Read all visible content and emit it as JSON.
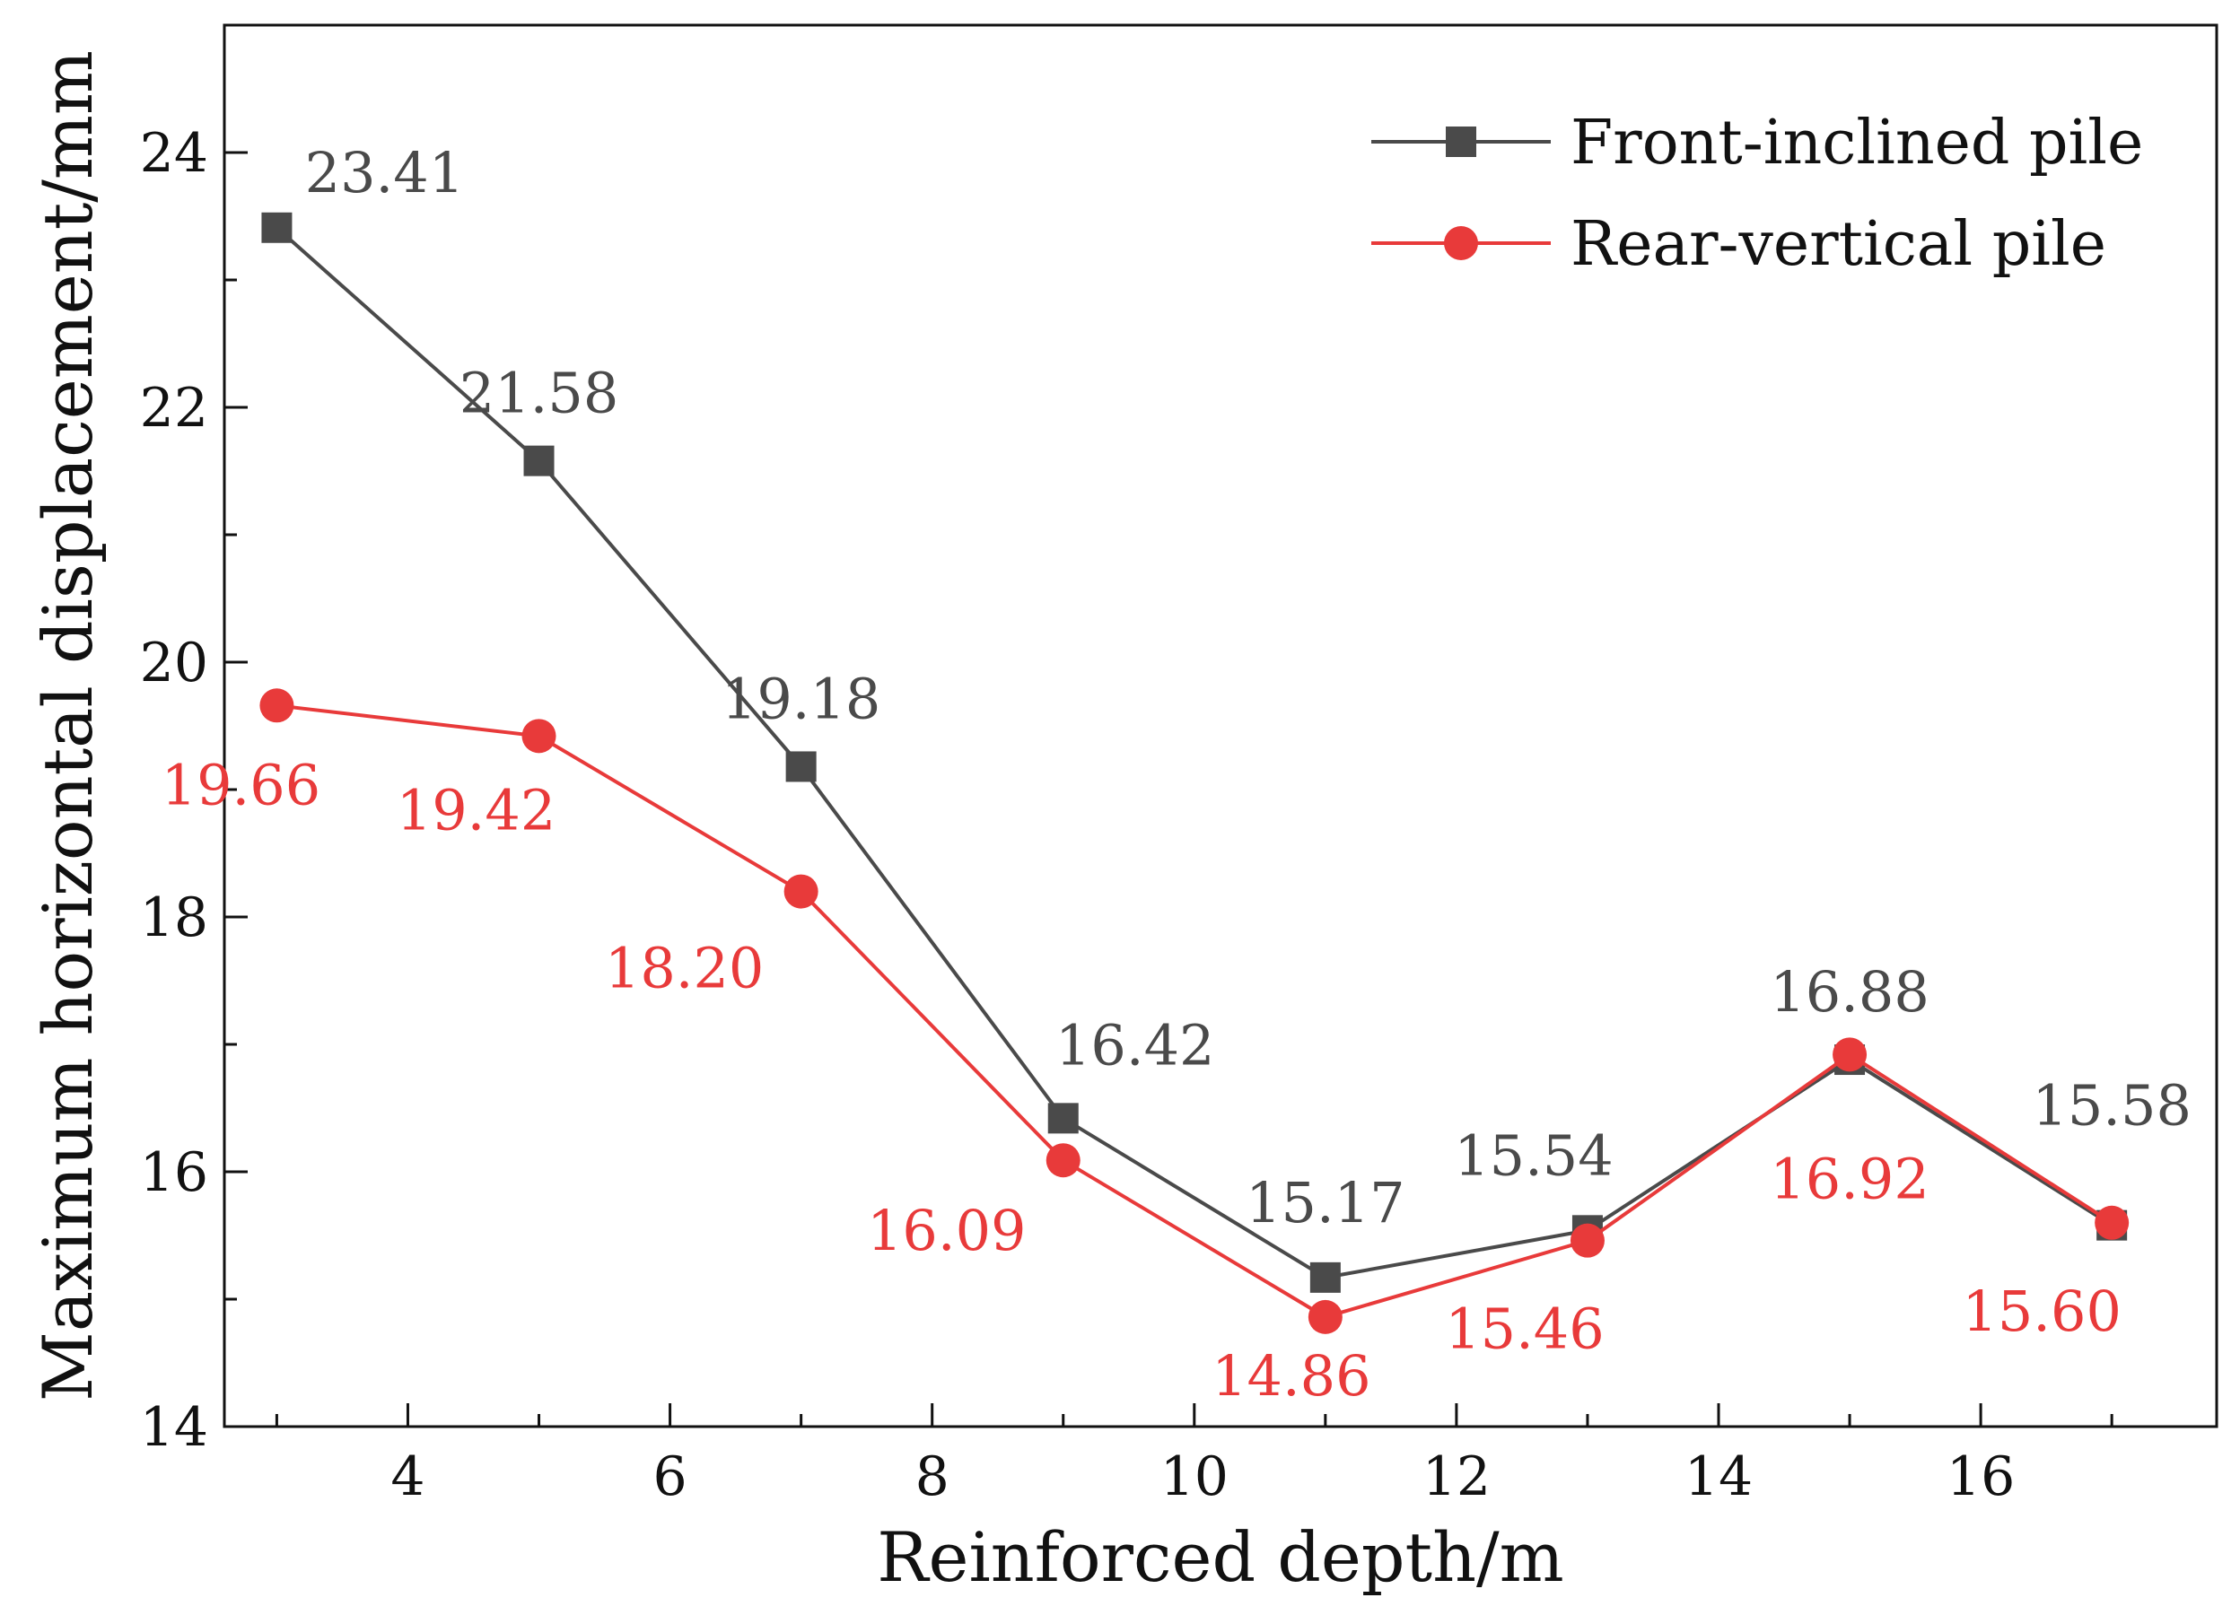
{
  "chart_data": {
    "type": "line",
    "title": "",
    "xlabel": "Reinforced depth/m",
    "ylabel": "Maximum horizontal displacement/mm",
    "xlim": [
      2.6,
      17.8
    ],
    "ylim": [
      14,
      25
    ],
    "x": [
      3,
      5,
      7,
      9,
      11,
      13,
      15,
      17
    ],
    "x_ticks": [
      4,
      6,
      8,
      10,
      12,
      14,
      16
    ],
    "x_minor_ticks": [
      3,
      5,
      7,
      9,
      11,
      13,
      15,
      17
    ],
    "y_ticks": [
      14,
      16,
      18,
      20,
      22,
      24
    ],
    "y_minor_ticks": [
      15,
      17,
      19,
      21,
      23
    ],
    "grid": false,
    "legend_position": "top-right",
    "series": [
      {
        "name": "Front-inclined pile",
        "color": "#4a4a4a",
        "marker": "square",
        "values": [
          23.41,
          21.58,
          19.18,
          16.42,
          15.17,
          15.54,
          16.88,
          15.58
        ],
        "labels": [
          "23.41",
          "21.58",
          "19.18",
          "16.42",
          "15.17",
          "15.54",
          "16.88",
          "15.58"
        ]
      },
      {
        "name": "Rear-vertical pile",
        "color": "#e83a3a",
        "marker": "circle",
        "values": [
          19.66,
          19.42,
          18.2,
          16.09,
          14.86,
          15.46,
          16.92,
          15.6
        ],
        "labels": [
          "19.66",
          "19.42",
          "18.20",
          "16.09",
          "14.86",
          "15.46",
          "16.92",
          "15.60"
        ]
      }
    ]
  }
}
